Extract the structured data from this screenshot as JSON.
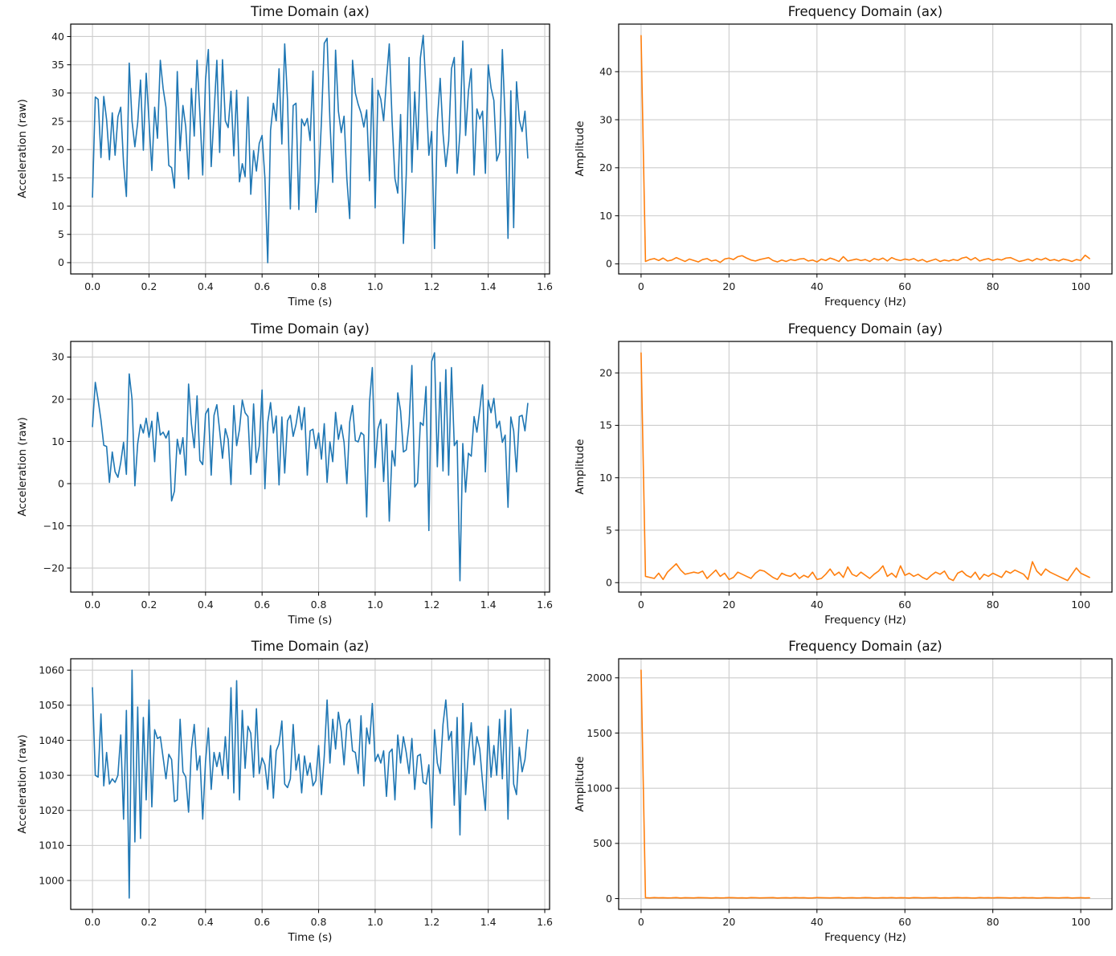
{
  "style": {
    "background_color": "#ffffff",
    "grid_color": "#cccccc",
    "spine_color": "#000000",
    "text_color": "#1a1a1a",
    "time_series_color": "#1f77b4",
    "frequency_series_color": "#ff7f0e"
  },
  "chart_data": [
    {
      "id": "time-ax",
      "type": "line",
      "title": "Time Domain (ax)",
      "xlabel": "Time (s)",
      "ylabel": "Acceleration (raw)",
      "line_color": "#1f77b4",
      "grid": true,
      "xlim": [
        -0.077,
        1.617
      ],
      "ylim": [
        -2.0,
        42.2
      ],
      "xticks": [
        0.0,
        0.2,
        0.4,
        0.6,
        0.8,
        1.0,
        1.2,
        1.4,
        1.6
      ],
      "xtick_labels": [
        "0.0",
        "0.2",
        "0.4",
        "0.6",
        "0.8",
        "1.0",
        "1.2",
        "1.4",
        "1.6"
      ],
      "yticks": [
        0,
        5,
        10,
        15,
        20,
        25,
        30,
        35,
        40
      ],
      "ytick_labels": [
        "0",
        "5",
        "10",
        "15",
        "20",
        "25",
        "30",
        "35",
        "40"
      ],
      "x_start": 0,
      "x_step": 0.01,
      "y": [
        11.6,
        29.3,
        28.9,
        18.6,
        29.4,
        25.3,
        18.2,
        26.5,
        19.0,
        25.8,
        27.5,
        17.5,
        11.7,
        35.3,
        25.0,
        20.5,
        24.8,
        32.3,
        19.9,
        33.5,
        25.1,
        16.3,
        27.5,
        22.0,
        35.8,
        30.8,
        27.5,
        17.2,
        16.8,
        13.2,
        33.8,
        19.8,
        27.8,
        24.0,
        14.8,
        30.8,
        22.4,
        35.8,
        26.4,
        15.5,
        32.4,
        37.7,
        17.0,
        26.3,
        35.8,
        19.5,
        35.9,
        25.1,
        23.9,
        30.3,
        18.9,
        30.5,
        14.3,
        17.5,
        15.2,
        29.3,
        12.1,
        19.8,
        16.2,
        21.1,
        22.5,
        15.0,
        0.0,
        23.4,
        28.2,
        25.1,
        34.3,
        21.0,
        38.7,
        28.8,
        9.5,
        27.8,
        28.2,
        9.4,
        25.4,
        24.2,
        25.5,
        21.6,
        33.9,
        8.9,
        14.2,
        25.0,
        38.8,
        39.7,
        25.1,
        14.2,
        37.6,
        26.8,
        23.0,
        25.9,
        14.8,
        7.8,
        35.8,
        30.0,
        28.0,
        26.5,
        24.0,
        27.0,
        14.5,
        32.6,
        9.7,
        30.5,
        28.9,
        25.1,
        32.3,
        38.7,
        25.0,
        14.9,
        12.3,
        26.2,
        3.4,
        15.5,
        36.3,
        16.0,
        30.2,
        20.0,
        36.2,
        40.2,
        30.5,
        19.0,
        23.2,
        2.5,
        25.0,
        32.6,
        22.9,
        17.0,
        21.5,
        34.3,
        36.3,
        15.8,
        23.0,
        39.2,
        22.5,
        30.3,
        34.3,
        15.5,
        27.2,
        25.4,
        26.8,
        15.8,
        35.0,
        30.9,
        28.7,
        18.0,
        19.5,
        37.7,
        25.1,
        4.3,
        30.4,
        6.2,
        32.0,
        25.2,
        23.2,
        26.8,
        18.5
      ]
    },
    {
      "id": "freq-ax",
      "type": "line",
      "title": "Frequency Domain (ax)",
      "xlabel": "Frequency (Hz)",
      "ylabel": "Amplitude",
      "line_color": "#ff7f0e",
      "grid": true,
      "xlim": [
        -5.1,
        107.1
      ],
      "ylim": [
        -2.1,
        49.9
      ],
      "xticks": [
        0,
        20,
        40,
        60,
        80,
        100
      ],
      "xtick_labels": [
        "0",
        "20",
        "40",
        "60",
        "80",
        "100"
      ],
      "yticks": [
        0,
        10,
        20,
        30,
        40
      ],
      "ytick_labels": [
        "0",
        "10",
        "20",
        "30",
        "40"
      ],
      "x_start": 0,
      "x_step": 1,
      "y": [
        47.5,
        0.5,
        0.9,
        1.1,
        0.7,
        1.2,
        0.6,
        0.8,
        1.3,
        0.9,
        0.5,
        1.0,
        0.7,
        0.4,
        0.9,
        1.1,
        0.6,
        0.8,
        0.3,
        1.0,
        1.2,
        0.9,
        1.5,
        1.7,
        1.2,
        0.8,
        0.6,
        0.9,
        1.1,
        1.3,
        0.7,
        0.4,
        0.8,
        0.5,
        0.9,
        0.7,
        1.0,
        1.1,
        0.6,
        0.8,
        0.4,
        1.0,
        0.7,
        1.2,
        0.9,
        0.5,
        1.5,
        0.6,
        0.8,
        1.0,
        0.7,
        0.9,
        0.5,
        1.1,
        0.8,
        1.2,
        0.6,
        1.3,
        0.9,
        0.7,
        1.0,
        0.8,
        1.1,
        0.6,
        0.9,
        0.4,
        0.7,
        1.0,
        0.5,
        0.8,
        0.6,
        0.9,
        0.7,
        1.2,
        1.4,
        0.8,
        1.3,
        0.6,
        0.9,
        1.1,
        0.7,
        1.0,
        0.8,
        1.2,
        1.3,
        0.9,
        0.5,
        0.7,
        1.0,
        0.6,
        1.1,
        0.8,
        1.2,
        0.7,
        0.9,
        0.6,
        1.0,
        0.8,
        0.5,
        0.9,
        0.7,
        1.8,
        1.1
      ]
    },
    {
      "id": "time-ay",
      "type": "line",
      "title": "Time Domain (ay)",
      "xlabel": "Time (s)",
      "ylabel": "Acceleration (raw)",
      "line_color": "#1f77b4",
      "grid": true,
      "xlim": [
        -0.077,
        1.617
      ],
      "ylim": [
        -25.7,
        33.7
      ],
      "xticks": [
        0.0,
        0.2,
        0.4,
        0.6,
        0.8,
        1.0,
        1.2,
        1.4,
        1.6
      ],
      "xtick_labels": [
        "0.0",
        "0.2",
        "0.4",
        "0.6",
        "0.8",
        "1.0",
        "1.2",
        "1.4",
        "1.6"
      ],
      "yticks": [
        -20,
        -10,
        0,
        10,
        20,
        30
      ],
      "ytick_labels": [
        "−20",
        "−10",
        "0",
        "10",
        "20",
        "30"
      ],
      "x_start": 0,
      "x_step": 0.01,
      "y": [
        13.5,
        24.0,
        19.8,
        15.1,
        9.1,
        8.8,
        0.3,
        7.5,
        2.8,
        1.5,
        5.0,
        9.8,
        2.2,
        26.0,
        20.0,
        -0.5,
        9.5,
        14.0,
        12.0,
        15.5,
        11.0,
        14.8,
        5.2,
        16.9,
        11.5,
        12.2,
        10.8,
        12.5,
        -4.1,
        -1.8,
        10.5,
        7.0,
        10.9,
        2.0,
        23.6,
        14.2,
        8.5,
        20.8,
        5.5,
        4.5,
        16.5,
        17.8,
        2.0,
        16.2,
        18.7,
        12.5,
        6.0,
        13.0,
        10.5,
        -0.2,
        18.5,
        9.0,
        12.8,
        19.8,
        16.8,
        15.9,
        2.2,
        18.9,
        5.0,
        8.9,
        22.2,
        -1.2,
        14.5,
        19.2,
        12.0,
        16.0,
        -0.3,
        15.8,
        2.5,
        14.9,
        16.2,
        11.2,
        14.0,
        18.3,
        12.8,
        18.0,
        2.0,
        12.5,
        12.9,
        8.3,
        12.0,
        5.8,
        14.2,
        0.3,
        9.9,
        5.2,
        16.9,
        10.5,
        13.9,
        9.8,
        0.0,
        14.6,
        18.5,
        10.2,
        9.9,
        12.1,
        11.5,
        -7.9,
        19.2,
        27.5,
        3.8,
        13.0,
        15.2,
        0.5,
        14.1,
        -8.9,
        7.8,
        4.2,
        21.5,
        17.2,
        7.5,
        8.0,
        14.2,
        28.0,
        -0.8,
        0.2,
        14.5,
        13.8,
        23.0,
        -11.1,
        29.0,
        31.0,
        4.0,
        24.0,
        3.0,
        27.0,
        2.0,
        27.5,
        9.0,
        10.2,
        -23.0,
        9.5,
        -2.0,
        7.2,
        6.5,
        15.9,
        12.2,
        17.5,
        23.4,
        2.8,
        19.8,
        16.8,
        20.2,
        13.2,
        14.8,
        9.8,
        11.5,
        -5.6,
        15.8,
        12.5,
        2.8,
        15.9,
        16.2,
        12.5,
        19.0
      ]
    },
    {
      "id": "freq-ay",
      "type": "line",
      "title": "Frequency Domain (ay)",
      "xlabel": "Frequency (Hz)",
      "ylabel": "Amplitude",
      "line_color": "#ff7f0e",
      "grid": true,
      "xlim": [
        -5.1,
        107.1
      ],
      "ylim": [
        -0.9,
        23.0
      ],
      "xticks": [
        0,
        20,
        40,
        60,
        80,
        100
      ],
      "xtick_labels": [
        "0",
        "20",
        "40",
        "60",
        "80",
        "100"
      ],
      "yticks": [
        0,
        5,
        10,
        15,
        20
      ],
      "ytick_labels": [
        "0",
        "5",
        "10",
        "15",
        "20"
      ],
      "x_start": 0,
      "x_step": 1,
      "y": [
        21.9,
        0.6,
        0.5,
        0.4,
        0.9,
        0.3,
        1.0,
        1.4,
        1.8,
        1.2,
        0.8,
        0.9,
        1.0,
        0.9,
        1.1,
        0.4,
        0.8,
        1.2,
        0.6,
        0.9,
        0.3,
        0.5,
        1.0,
        0.8,
        0.6,
        0.4,
        0.9,
        1.2,
        1.1,
        0.8,
        0.5,
        0.3,
        0.9,
        0.7,
        0.6,
        0.9,
        0.4,
        0.7,
        0.5,
        1.0,
        0.3,
        0.4,
        0.8,
        1.3,
        0.7,
        1.0,
        0.5,
        1.5,
        0.8,
        0.6,
        1.0,
        0.7,
        0.4,
        0.8,
        1.1,
        1.6,
        0.6,
        0.9,
        0.5,
        1.6,
        0.7,
        0.9,
        0.6,
        0.8,
        0.5,
        0.3,
        0.7,
        1.0,
        0.8,
        1.1,
        0.4,
        0.2,
        0.9,
        1.1,
        0.7,
        0.5,
        1.0,
        0.3,
        0.8,
        0.6,
        0.9,
        0.7,
        0.5,
        1.1,
        0.9,
        1.2,
        1.0,
        0.8,
        0.3,
        2.0,
        1.1,
        0.7,
        1.3,
        1.0,
        0.8,
        0.6,
        0.4,
        0.2,
        0.8,
        1.4,
        0.9,
        0.7,
        0.5
      ]
    },
    {
      "id": "time-az",
      "type": "line",
      "title": "Time Domain (az)",
      "xlabel": "Time (s)",
      "ylabel": "Acceleration (raw)",
      "line_color": "#1f77b4",
      "grid": true,
      "xlim": [
        -0.077,
        1.617
      ],
      "ylim": [
        991.75,
        1063.25
      ],
      "xticks": [
        0.0,
        0.2,
        0.4,
        0.6,
        0.8,
        1.0,
        1.2,
        1.4,
        1.6
      ],
      "xtick_labels": [
        "0.0",
        "0.2",
        "0.4",
        "0.6",
        "0.8",
        "1.0",
        "1.2",
        "1.4",
        "1.6"
      ],
      "yticks": [
        1000,
        1010,
        1020,
        1030,
        1040,
        1050,
        1060
      ],
      "ytick_labels": [
        "1000",
        "1010",
        "1020",
        "1030",
        "1040",
        "1050",
        "1060"
      ],
      "x_start": 0,
      "x_step": 0.01,
      "y": [
        1055.0,
        1030.0,
        1029.5,
        1047.5,
        1027.0,
        1036.5,
        1027.5,
        1029.0,
        1028.0,
        1030.0,
        1041.5,
        1017.5,
        1048.5,
        995.0,
        1060.0,
        1011.0,
        1049.5,
        1012.0,
        1046.5,
        1023.0,
        1051.5,
        1021.0,
        1043.0,
        1040.5,
        1041.0,
        1035.0,
        1029.0,
        1036.0,
        1034.5,
        1022.5,
        1023.0,
        1046.0,
        1031.0,
        1029.5,
        1019.5,
        1037.5,
        1044.5,
        1031.5,
        1035.5,
        1017.5,
        1034.0,
        1043.5,
        1026.0,
        1036.5,
        1032.5,
        1036.5,
        1030.0,
        1041.0,
        1029.0,
        1055.0,
        1025.0,
        1057.0,
        1023.0,
        1048.5,
        1032.0,
        1044.0,
        1042.0,
        1029.5,
        1049.0,
        1030.5,
        1035.0,
        1033.0,
        1026.0,
        1038.5,
        1023.5,
        1037.0,
        1039.0,
        1045.5,
        1027.5,
        1026.5,
        1029.0,
        1044.5,
        1031.5,
        1036.0,
        1025.0,
        1035.5,
        1030.0,
        1033.5,
        1027.0,
        1028.5,
        1038.5,
        1024.5,
        1035.5,
        1051.5,
        1033.5,
        1046.0,
        1037.5,
        1048.0,
        1042.5,
        1033.0,
        1044.5,
        1046.0,
        1037.0,
        1036.5,
        1030.5,
        1047.0,
        1027.0,
        1043.5,
        1039.0,
        1050.5,
        1034.0,
        1036.0,
        1033.5,
        1037.0,
        1024.0,
        1036.5,
        1037.5,
        1023.0,
        1041.5,
        1033.5,
        1041.0,
        1036.5,
        1030.5,
        1040.5,
        1026.0,
        1035.5,
        1036.0,
        1028.0,
        1027.5,
        1033.0,
        1015.0,
        1043.0,
        1033.5,
        1030.5,
        1044.5,
        1051.5,
        1040.0,
        1042.5,
        1021.5,
        1046.5,
        1013.0,
        1050.5,
        1024.5,
        1036.5,
        1045.0,
        1033.0,
        1041.0,
        1037.5,
        1028.0,
        1020.0,
        1044.0,
        1029.5,
        1038.5,
        1030.0,
        1046.0,
        1029.0,
        1048.5,
        1017.5,
        1049.0,
        1027.5,
        1024.5,
        1038.0,
        1031.0,
        1034.5,
        1043.0
      ]
    },
    {
      "id": "freq-az",
      "type": "line",
      "title": "Frequency Domain (az)",
      "xlabel": "Frequency (Hz)",
      "ylabel": "Amplitude",
      "line_color": "#ff7f0e",
      "grid": true,
      "xlim": [
        -5.1,
        107.1
      ],
      "ylim": [
        -98,
        2173
      ],
      "xticks": [
        0,
        20,
        40,
        60,
        80,
        100
      ],
      "xtick_labels": [
        "0",
        "20",
        "40",
        "60",
        "80",
        "100"
      ],
      "yticks": [
        0,
        500,
        1000,
        1500,
        2000
      ],
      "ytick_labels": [
        "0",
        "500",
        "1000",
        "1500",
        "2000"
      ],
      "x_start": 0,
      "x_step": 1,
      "y": [
        2070,
        8,
        6,
        9,
        7,
        8,
        6,
        7,
        9,
        5,
        8,
        7,
        6,
        9,
        8,
        7,
        5,
        8,
        6,
        7,
        9,
        8,
        6,
        7,
        5,
        9,
        8,
        6,
        7,
        8,
        9,
        5,
        7,
        8,
        6,
        9,
        7,
        8,
        5,
        6,
        9,
        8,
        7,
        6,
        8,
        9,
        5,
        7,
        8,
        6,
        7,
        9,
        8,
        5,
        6,
        8,
        7,
        9,
        6,
        8,
        7,
        5,
        9,
        8,
        6,
        7,
        8,
        9,
        5,
        7,
        6,
        8,
        9,
        7,
        8,
        6,
        5,
        9,
        7,
        8,
        6,
        9,
        8,
        7,
        5,
        8,
        6,
        9,
        7,
        8,
        5,
        6,
        9,
        8,
        7,
        6,
        8,
        9,
        5,
        7,
        8,
        6,
        7
      ]
    }
  ]
}
